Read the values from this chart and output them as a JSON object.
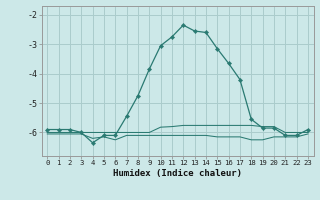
{
  "title": "",
  "xlabel": "Humidex (Indice chaleur)",
  "background_color": "#cce8e8",
  "grid_color": "#aacccc",
  "line_color": "#2a7a72",
  "xlim": [
    -0.5,
    23.5
  ],
  "ylim": [
    -6.8,
    -1.7
  ],
  "x": [
    0,
    1,
    2,
    3,
    4,
    5,
    6,
    7,
    8,
    9,
    10,
    11,
    12,
    13,
    14,
    15,
    16,
    17,
    18,
    19,
    20,
    21,
    22,
    23
  ],
  "y_main": [
    -5.9,
    -5.9,
    -5.9,
    -6.0,
    -6.35,
    -6.1,
    -6.1,
    -5.45,
    -4.75,
    -3.85,
    -3.05,
    -2.75,
    -2.35,
    -2.55,
    -2.6,
    -3.15,
    -3.65,
    -4.2,
    -5.55,
    -5.85,
    -5.85,
    -6.1,
    -6.1,
    -5.9
  ],
  "y_flat1": [
    -6.0,
    -6.0,
    -6.0,
    -6.0,
    -6.0,
    -6.0,
    -6.0,
    -6.0,
    -6.0,
    -6.0,
    -5.82,
    -5.8,
    -5.76,
    -5.76,
    -5.76,
    -5.76,
    -5.76,
    -5.76,
    -5.76,
    -5.8,
    -5.8,
    -6.0,
    -6.0,
    -6.0
  ],
  "y_flat2": [
    -6.05,
    -6.05,
    -6.05,
    -6.05,
    -6.2,
    -6.15,
    -6.25,
    -6.1,
    -6.1,
    -6.1,
    -6.1,
    -6.1,
    -6.1,
    -6.1,
    -6.1,
    -6.15,
    -6.15,
    -6.15,
    -6.25,
    -6.25,
    -6.15,
    -6.15,
    -6.15,
    -6.05
  ],
  "yticks": [
    -6,
    -5,
    -4,
    -3,
    -2
  ],
  "ytick_labels": [
    "-6",
    "-5",
    "-4",
    "-3",
    "-2"
  ]
}
